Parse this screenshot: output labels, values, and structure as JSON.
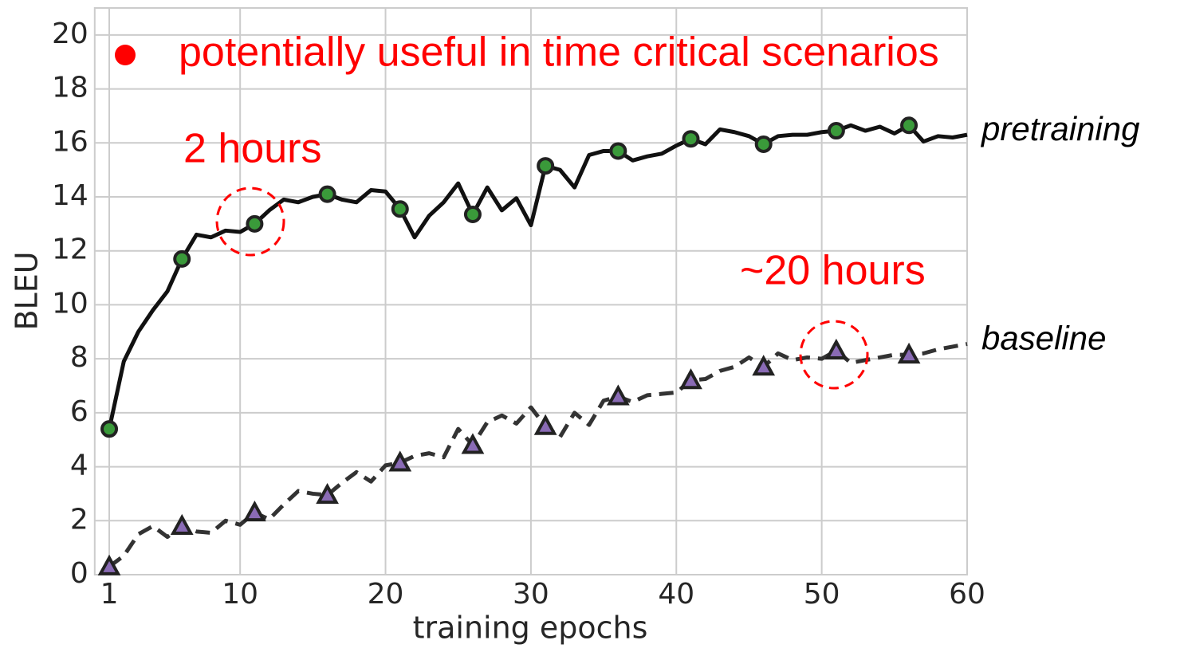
{
  "chart_data": {
    "type": "line",
    "xlabel": "training epochs",
    "ylabel": "BLEU",
    "x": [
      1,
      2,
      3,
      4,
      5,
      6,
      7,
      8,
      9,
      10,
      11,
      12,
      13,
      14,
      15,
      16,
      17,
      18,
      19,
      20,
      21,
      22,
      23,
      24,
      25,
      26,
      27,
      28,
      29,
      30,
      31,
      32,
      33,
      34,
      35,
      36,
      37,
      38,
      39,
      40,
      41,
      42,
      43,
      44,
      45,
      46,
      47,
      48,
      49,
      50,
      51,
      52,
      53,
      54,
      55,
      56,
      57,
      58,
      59,
      60
    ],
    "series": [
      {
        "name": "pretraining",
        "color": "#111111",
        "marker_color": "#3a9a3a",
        "marker": "circle",
        "dash": false,
        "values": [
          5.4,
          7.9,
          9.0,
          9.8,
          10.5,
          11.7,
          12.6,
          12.5,
          12.75,
          12.7,
          13.0,
          13.5,
          13.9,
          13.8,
          14.0,
          14.1,
          13.9,
          13.8,
          14.25,
          14.2,
          13.55,
          12.5,
          13.3,
          13.8,
          14.5,
          13.35,
          14.35,
          13.5,
          13.95,
          12.95,
          15.15,
          15.0,
          14.35,
          15.55,
          15.7,
          15.7,
          15.35,
          15.5,
          15.6,
          15.9,
          16.15,
          15.95,
          16.5,
          16.4,
          16.25,
          15.95,
          16.25,
          16.3,
          16.3,
          16.4,
          16.45,
          16.65,
          16.45,
          16.6,
          16.35,
          16.65,
          16.05,
          16.25,
          16.2,
          16.3
        ]
      },
      {
        "name": "baseline",
        "color": "#333333",
        "marker_color": "#8a6bb5",
        "marker": "triangle",
        "dash": true,
        "values": [
          0.3,
          0.7,
          1.5,
          1.8,
          1.4,
          1.8,
          1.6,
          1.55,
          2.0,
          1.85,
          2.3,
          2.05,
          2.6,
          3.1,
          3.0,
          2.95,
          3.4,
          3.8,
          3.45,
          4.05,
          4.15,
          4.4,
          4.5,
          4.35,
          5.4,
          4.8,
          5.65,
          5.9,
          5.6,
          6.2,
          5.5,
          5.1,
          6.0,
          5.55,
          6.45,
          6.6,
          6.4,
          6.65,
          6.7,
          6.75,
          7.2,
          7.25,
          7.55,
          7.7,
          8.05,
          7.7,
          8.2,
          7.95,
          8.05,
          8.0,
          8.3,
          7.85,
          7.95,
          8.05,
          8.15,
          8.15,
          8.2,
          8.35,
          8.45,
          8.55
        ]
      }
    ],
    "marker_every": 5,
    "xlim": [
      0,
      60
    ],
    "ylim": [
      0,
      21
    ],
    "xticks": [
      1,
      10,
      20,
      30,
      40,
      50,
      60
    ],
    "yticks": [
      0,
      2,
      4,
      6,
      8,
      10,
      12,
      14,
      16,
      18,
      20
    ],
    "grid": true,
    "annotations": [
      {
        "text": "potentially useful in time critical scenarios"
      },
      {
        "text": "2 hours"
      },
      {
        "text": "~20 hours"
      }
    ]
  }
}
